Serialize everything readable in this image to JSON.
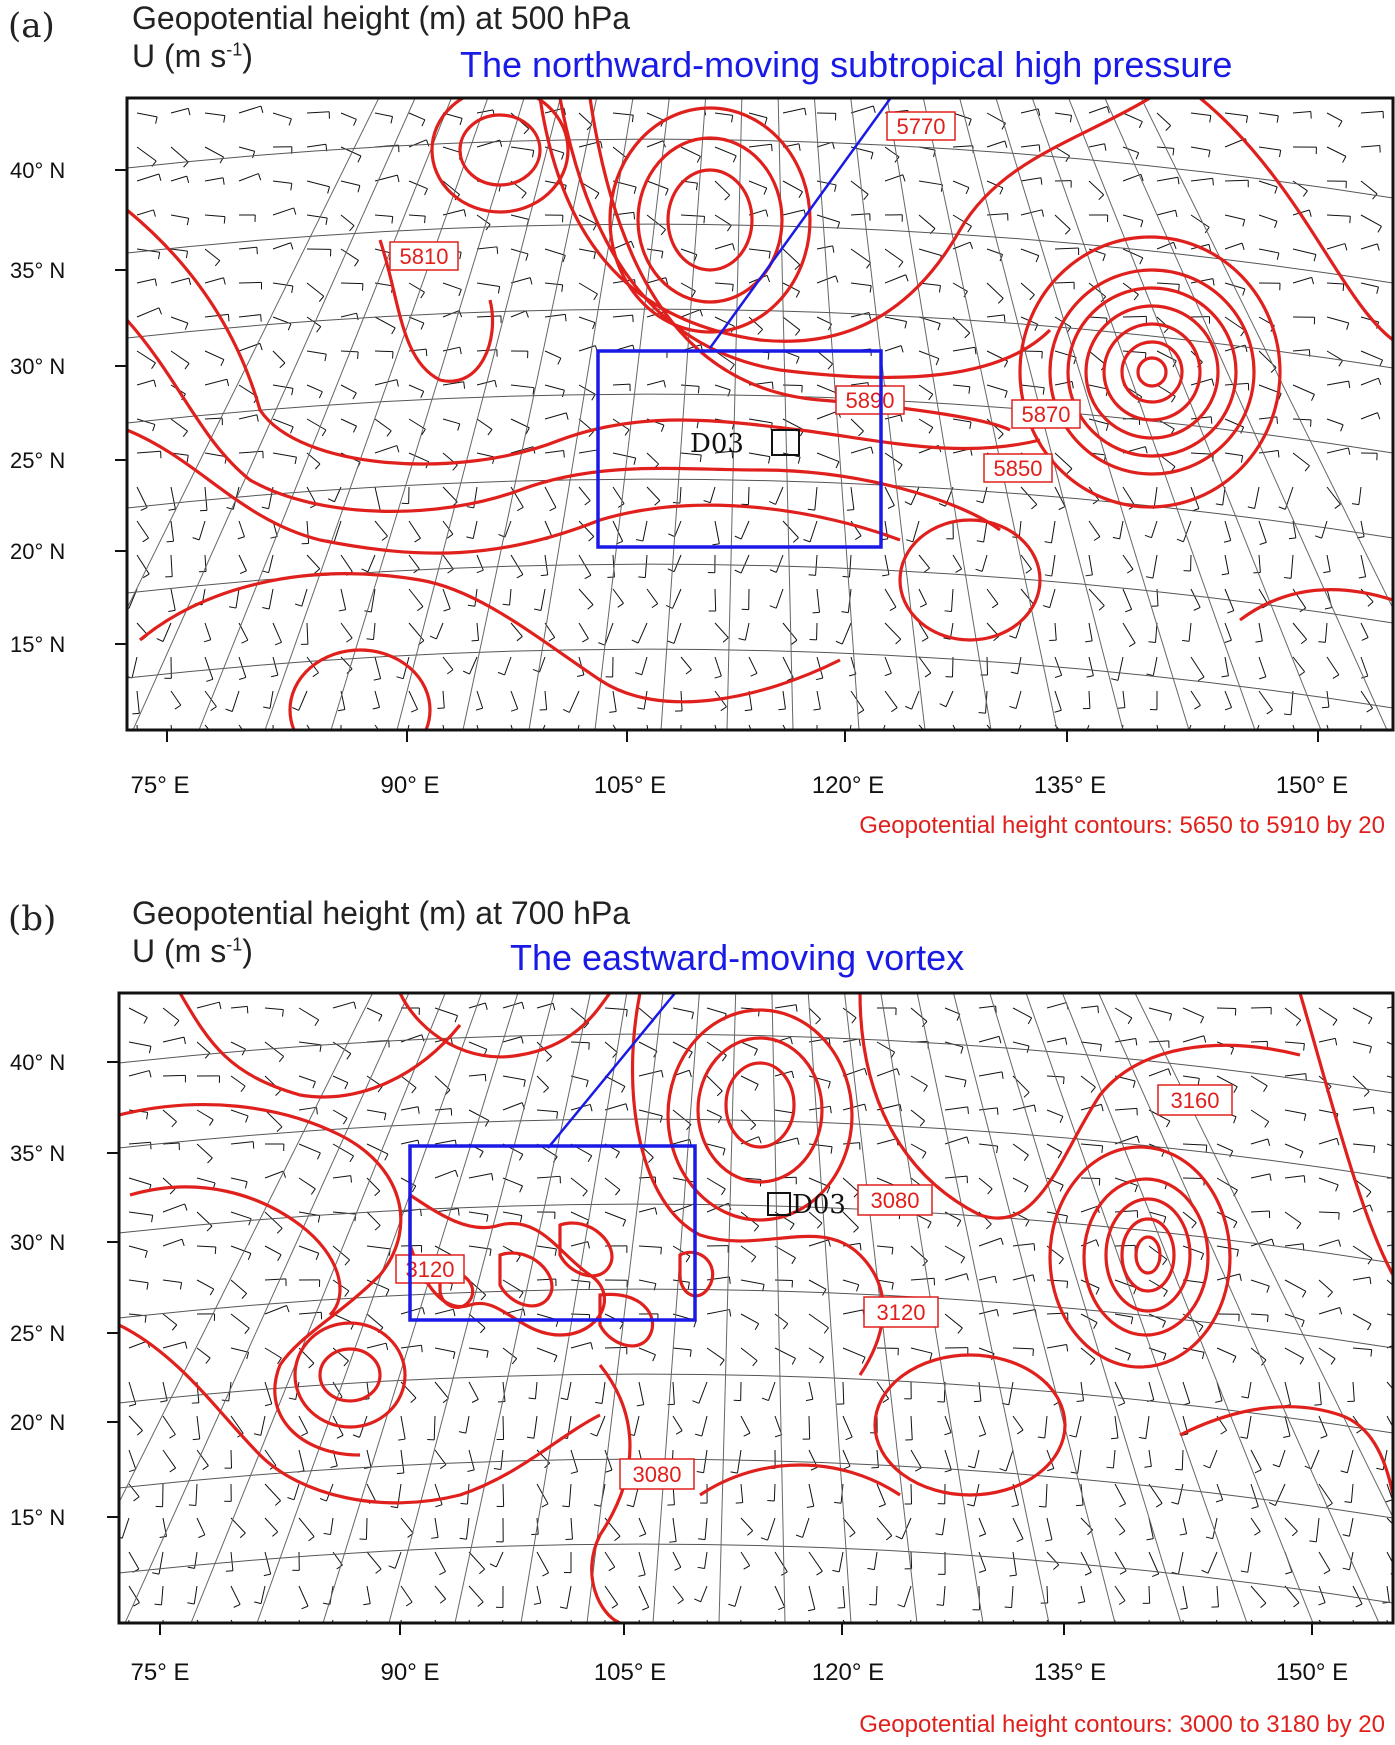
{
  "panels": [
    {
      "label": "(a)",
      "title_line1": "Geopotential height (m) at 500 hPa",
      "title_line2_prefix": "U (m s",
      "title_line2_exp": "-1",
      "title_line2_suffix": ")",
      "annotation": "The northward-moving subtropical high pressure",
      "domain_label": "D03",
      "contour_labels": [
        "5770",
        "5810",
        "5890",
        "5870",
        "5850"
      ],
      "footer": "Geopotential height contours: 5650 to 5910 by 20"
    },
    {
      "label": "(b)",
      "title_line1": "Geopotential height (m) at 700 hPa",
      "title_line2_prefix": "U (m s",
      "title_line2_exp": "-1",
      "title_line2_suffix": ")",
      "annotation": "The eastward-moving vortex",
      "domain_label": "D03",
      "contour_labels": [
        "3160",
        "3080",
        "3120",
        "3120",
        "3080"
      ],
      "footer": "Geopotential height contours: 3000 to 3180 by 20"
    }
  ],
  "axes": {
    "lat_labels": [
      "40° N",
      "35° N",
      "30° N",
      "25° N",
      "20° N",
      "15° N"
    ],
    "lon_labels": [
      "75° E",
      "90° E",
      "105° E",
      "120° E",
      "135° E",
      "150° E"
    ]
  },
  "colors": {
    "contour": "#e0201c",
    "annotation": "#1a1ae6",
    "wind": "#111111"
  }
}
